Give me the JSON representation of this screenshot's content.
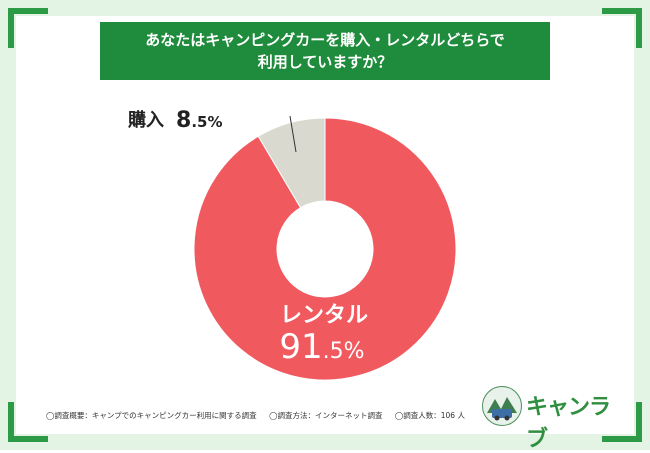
{
  "title": {
    "line1": "あなたはキャンピングカーを購入・レンタルどちらで",
    "line2": "利用していますか？"
  },
  "chart_data": {
    "type": "pie",
    "categories": [
      "レンタル",
      "購入"
    ],
    "values": [
      91.5,
      8.5
    ],
    "unit": "%",
    "colors": [
      "#f05a5f",
      "#d9d9d0"
    ],
    "labels": [
      {
        "name": "レンタル",
        "value_int": "91",
        "value_dec": ".5%"
      },
      {
        "name": "購入",
        "value_int": "8",
        "value_dec": ".5%"
      }
    ]
  },
  "footnotes": [
    "◯調査概要：キャンプでのキャンピングカー利用に関する調査",
    "◯調査方法：インターネット調査",
    "◯調査人数：106 人"
  ],
  "logo": {
    "text": "キャンラブ",
    "color": "#2f8f3f"
  }
}
